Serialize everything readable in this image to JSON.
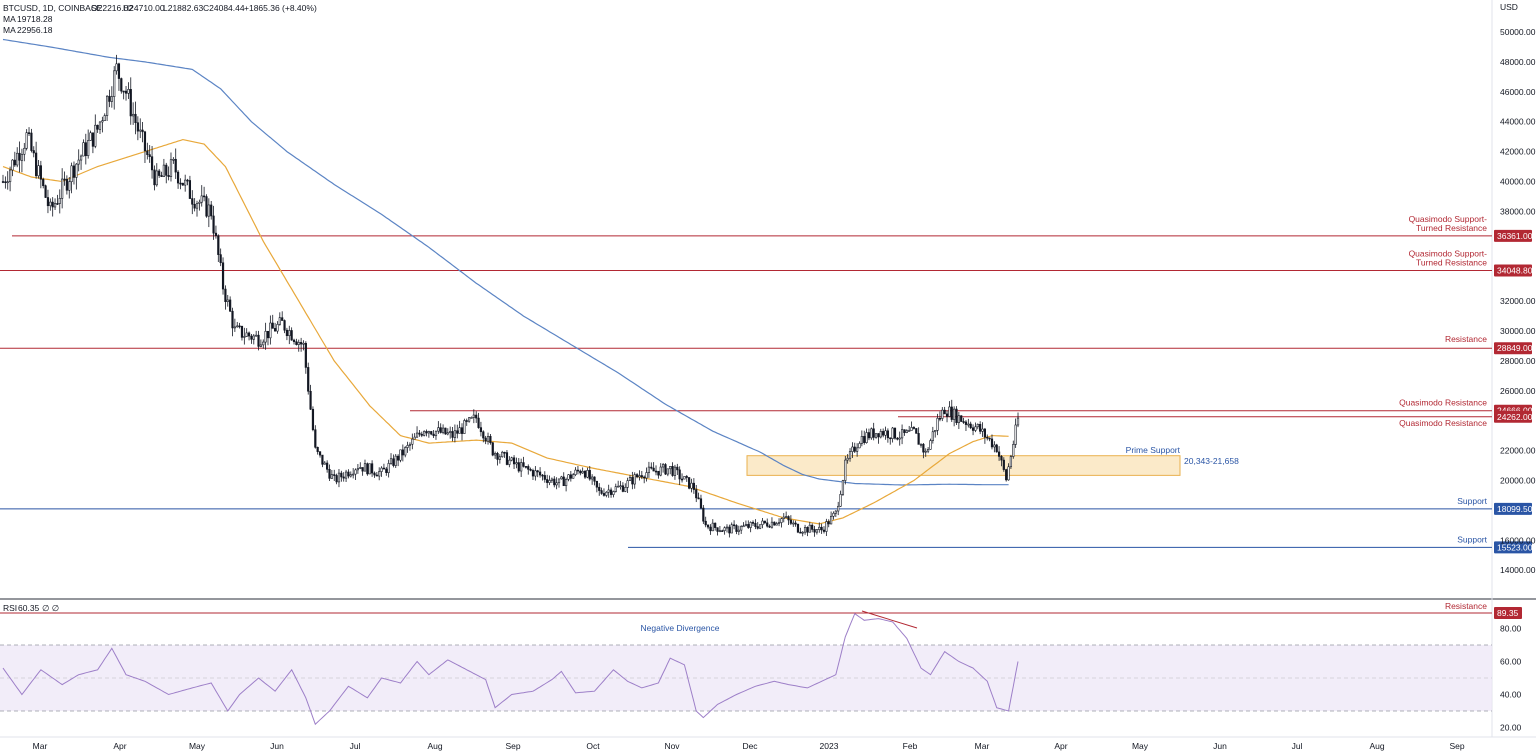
{
  "header": {
    "symbol_line": "BTCUSD, 1D, COINBASE",
    "ohlc": [
      "O22216.02",
      "H24710.00",
      "L21882.63",
      "C24084.44",
      "+1865.36 (+8.40%)"
    ],
    "ma_label": "MA",
    "ma_slow_value": "19718.28",
    "ma_fast_value": "22956.18"
  },
  "price_axis": {
    "unit": "USD",
    "ticks": [
      "50000.00",
      "48000.00",
      "46000.00",
      "44000.00",
      "42000.00",
      "40000.00",
      "38000.00",
      "32000.00",
      "30000.00",
      "28000.00",
      "26000.00",
      "22000.00",
      "20000.00",
      "16000.00",
      "14000.00"
    ]
  },
  "rsi_axis": {
    "label": "RSI",
    "value": "60.35",
    "extra": "∅ ∅",
    "ticks": [
      "80.00",
      "60.00",
      "40.00",
      "20.00"
    ]
  },
  "time_axis": {
    "labels": [
      "Mar",
      "Apr",
      "May",
      "Jun",
      "Jul",
      "Aug",
      "Sep",
      "Oct",
      "Nov",
      "Dec",
      "2023",
      "Feb",
      "Mar",
      "Apr",
      "May",
      "Jun",
      "Jul",
      "Aug",
      "Sep"
    ]
  },
  "levels": [
    {
      "price": 36361.0,
      "tag": "36361.00",
      "label": "Quasimodo Support-\nTurned Resistance",
      "color": "#b22833"
    },
    {
      "price": 34048.8,
      "tag": "34048.80",
      "label": "Quasimodo Support-\nTurned Resistance",
      "color": "#b22833"
    },
    {
      "price": 28849.0,
      "tag": "28849.00",
      "label": "Resistance",
      "color": "#b22833"
    },
    {
      "price": 24666.0,
      "tag": "24666.00",
      "label": "Quasimodo Resistance",
      "color": "#b22833"
    },
    {
      "price": 24262.0,
      "tag": "24262.00",
      "label": "Quasimodo Resistance",
      "color": "#b22833"
    },
    {
      "price": 18099.5,
      "tag": "18099.50",
      "label": "Support",
      "color": "#2a55a5"
    },
    {
      "price": 15523.0,
      "tag": "15523.00",
      "label": "Support",
      "color": "#2a55a5"
    }
  ],
  "zone": {
    "label": "Prime Support",
    "range_text": "20,343-21,658",
    "low": 20343,
    "high": 21658
  },
  "rsi_annotations": {
    "divergence_label": "Negative Divergence",
    "resistance_label": "Resistance",
    "resistance_value": "89.35"
  },
  "colors": {
    "ma_slow": "#5b84c4",
    "ma_fast": "#e8a83a",
    "rsi_line": "#9d7fc8",
    "resistance": "#b22833",
    "support": "#2a55a5",
    "zone_fill": "#fbe8c4",
    "zone_stroke": "#e8a83a"
  },
  "chart_data": {
    "type": "candlestick",
    "title": "BTCUSD, 1D, COINBASE",
    "x_range": [
      "2022-02-21",
      "2023-09-15"
    ],
    "ylim": [
      13000,
      51000
    ],
    "close_path_points": [
      [
        0,
        40000
      ],
      [
        10,
        43000
      ],
      [
        20,
        38000
      ],
      [
        30,
        41000
      ],
      [
        40,
        43500
      ],
      [
        48,
        47500
      ],
      [
        52,
        46000
      ],
      [
        58,
        43000
      ],
      [
        65,
        40000
      ],
      [
        72,
        41000
      ],
      [
        80,
        39000
      ],
      [
        88,
        38000
      ],
      [
        93,
        33000
      ],
      [
        98,
        30000
      ],
      [
        108,
        29500
      ],
      [
        118,
        30500
      ],
      [
        127,
        29000
      ],
      [
        132,
        22000
      ],
      [
        140,
        20000
      ],
      [
        150,
        21000
      ],
      [
        160,
        20500
      ],
      [
        170,
        22000
      ],
      [
        178,
        23500
      ],
      [
        190,
        23000
      ],
      [
        200,
        24200
      ],
      [
        207,
        22000
      ],
      [
        217,
        21000
      ],
      [
        225,
        20500
      ],
      [
        235,
        19800
      ],
      [
        245,
        20800
      ],
      [
        252,
        19200
      ],
      [
        262,
        19600
      ],
      [
        270,
        20500
      ],
      [
        282,
        20800
      ],
      [
        292,
        19500
      ],
      [
        297,
        17000
      ],
      [
        306,
        16700
      ],
      [
        318,
        17000
      ],
      [
        325,
        17200
      ],
      [
        330,
        17500
      ],
      [
        336,
        16800
      ],
      [
        346,
        16700
      ],
      [
        352,
        17800
      ],
      [
        356,
        21000
      ],
      [
        362,
        22800
      ],
      [
        370,
        23300
      ],
      [
        380,
        23000
      ],
      [
        385,
        23200
      ],
      [
        390,
        21800
      ],
      [
        395,
        24000
      ],
      [
        398,
        24800
      ],
      [
        404,
        24200
      ],
      [
        412,
        23500
      ],
      [
        420,
        22200
      ],
      [
        424,
        20100
      ],
      [
        427,
        22500
      ],
      [
        429,
        24100
      ]
    ],
    "series": [
      {
        "name": "MA 19718.28",
        "type": "line",
        "points": [
          [
            0,
            49500
          ],
          [
            20,
            49000
          ],
          [
            45,
            48300
          ],
          [
            60,
            48000
          ],
          [
            80,
            47500
          ],
          [
            92,
            46200
          ],
          [
            105,
            44000
          ],
          [
            120,
            42000
          ],
          [
            140,
            39800
          ],
          [
            160,
            37800
          ],
          [
            180,
            35600
          ],
          [
            200,
            33200
          ],
          [
            220,
            31000
          ],
          [
            240,
            29100
          ],
          [
            260,
            27200
          ],
          [
            280,
            25100
          ],
          [
            300,
            23300
          ],
          [
            320,
            21900
          ],
          [
            330,
            21000
          ],
          [
            338,
            20400
          ],
          [
            345,
            20100
          ],
          [
            360,
            19800
          ],
          [
            380,
            19700
          ],
          [
            400,
            19750
          ],
          [
            415,
            19720
          ],
          [
            425,
            19718
          ]
        ]
      },
      {
        "name": "MA 22956.18",
        "type": "line",
        "points": [
          [
            0,
            41000
          ],
          [
            12,
            40300
          ],
          [
            25,
            40000
          ],
          [
            40,
            41000
          ],
          [
            60,
            42000
          ],
          [
            76,
            42800
          ],
          [
            85,
            42500
          ],
          [
            94,
            41000
          ],
          [
            110,
            36000
          ],
          [
            125,
            32000
          ],
          [
            140,
            28000
          ],
          [
            155,
            25000
          ],
          [
            168,
            23000
          ],
          [
            180,
            22500
          ],
          [
            200,
            22700
          ],
          [
            215,
            22500
          ],
          [
            230,
            21500
          ],
          [
            250,
            20800
          ],
          [
            270,
            20200
          ],
          [
            290,
            19600
          ],
          [
            310,
            18500
          ],
          [
            330,
            17500
          ],
          [
            345,
            17100
          ],
          [
            355,
            17500
          ],
          [
            368,
            18500
          ],
          [
            385,
            20000
          ],
          [
            400,
            21800
          ],
          [
            410,
            22600
          ],
          [
            418,
            23000
          ],
          [
            425,
            22956
          ]
        ]
      }
    ],
    "rsi": {
      "ylim": [
        15,
        95
      ],
      "points": [
        [
          0,
          56
        ],
        [
          8,
          40
        ],
        [
          16,
          55
        ],
        [
          25,
          46
        ],
        [
          32,
          52
        ],
        [
          40,
          55
        ],
        [
          46,
          68
        ],
        [
          52,
          52
        ],
        [
          60,
          48
        ],
        [
          70,
          40
        ],
        [
          80,
          44
        ],
        [
          88,
          47
        ],
        [
          95,
          30
        ],
        [
          100,
          40
        ],
        [
          108,
          50
        ],
        [
          115,
          42
        ],
        [
          122,
          55
        ],
        [
          128,
          38
        ],
        [
          132,
          22
        ],
        [
          138,
          30
        ],
        [
          146,
          45
        ],
        [
          154,
          38
        ],
        [
          160,
          50
        ],
        [
          168,
          47
        ],
        [
          175,
          60
        ],
        [
          180,
          52
        ],
        [
          188,
          61
        ],
        [
          196,
          55
        ],
        [
          204,
          49
        ],
        [
          208,
          32
        ],
        [
          215,
          40
        ],
        [
          224,
          42
        ],
        [
          232,
          49
        ],
        [
          236,
          54
        ],
        [
          242,
          41
        ],
        [
          250,
          42
        ],
        [
          258,
          55
        ],
        [
          264,
          48
        ],
        [
          270,
          44
        ],
        [
          277,
          47
        ],
        [
          282,
          62
        ],
        [
          288,
          58
        ],
        [
          293,
          30
        ],
        [
          296,
          26
        ],
        [
          302,
          34
        ],
        [
          310,
          40
        ],
        [
          318,
          45
        ],
        [
          326,
          48
        ],
        [
          332,
          46
        ],
        [
          340,
          44
        ],
        [
          346,
          48
        ],
        [
          352,
          52
        ],
        [
          356,
          75
        ],
        [
          360,
          89
        ],
        [
          364,
          85
        ],
        [
          370,
          86
        ],
        [
          376,
          84
        ],
        [
          382,
          74
        ],
        [
          388,
          56
        ],
        [
          392,
          52
        ],
        [
          398,
          66
        ],
        [
          404,
          60
        ],
        [
          410,
          56
        ],
        [
          416,
          48
        ],
        [
          420,
          32
        ],
        [
          425,
          30
        ],
        [
          429,
          60
        ]
      ]
    },
    "horizontal_levels": [
      36361.0,
      34048.8,
      28849.0,
      24666.0,
      24262.0,
      18099.5,
      15523.0
    ],
    "zone": [
      20343,
      21658
    ]
  }
}
